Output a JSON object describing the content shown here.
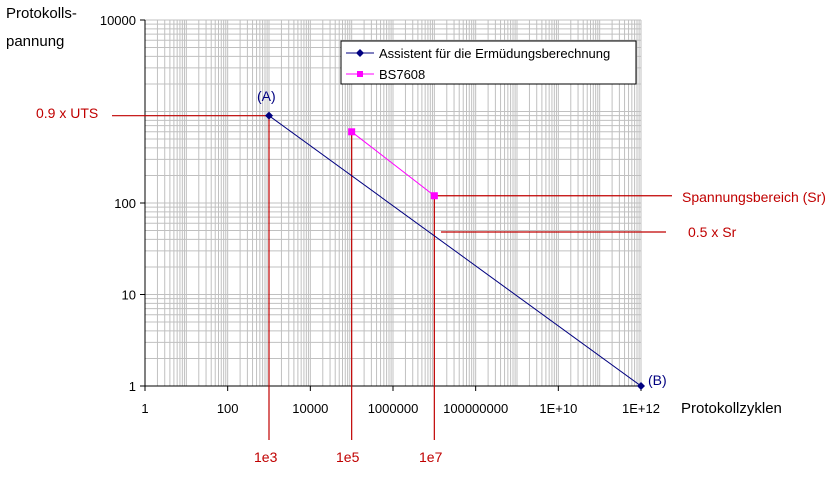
{
  "chart_data": {
    "type": "line",
    "xscale": "log",
    "yscale": "log",
    "xlim": [
      1,
      1000000000000.0
    ],
    "ylim": [
      1,
      10000
    ],
    "xlabel": "Protokollzyklen",
    "ylabel": "Protokolls-\npannung",
    "ylabel_lines": [
      "Protokolls-",
      "pannung"
    ],
    "grid": true,
    "xticks": [
      {
        "v": 1,
        "label": "1"
      },
      {
        "v": 100,
        "label": "100"
      },
      {
        "v": 10000,
        "label": "10000"
      },
      {
        "v": 1000000,
        "label": "1000000"
      },
      {
        "v": 100000000,
        "label": "100000000"
      },
      {
        "v": 10000000000.0,
        "label": "1E+10"
      },
      {
        "v": 1000000000000.0,
        "label": "1E+12"
      }
    ],
    "yticks": [
      {
        "v": 1,
        "label": "1"
      },
      {
        "v": 10,
        "label": "10"
      },
      {
        "v": 100,
        "label": "100"
      },
      {
        "v": 10000,
        "label": "10000"
      }
    ],
    "legend_position": "top-right",
    "series": [
      {
        "name": "Assistent für die Ermüdungsberechnung",
        "color": "#000080",
        "marker": "diamond",
        "x": [
          1000,
          1000000000000.0
        ],
        "y": [
          900,
          1
        ]
      },
      {
        "name": "BS7608",
        "color": "#ff00ff",
        "marker": "square",
        "x": [
          100000,
          10000000
        ],
        "y": [
          600,
          120
        ]
      }
    ],
    "annotations": {
      "point_a": "(A)",
      "point_b": "(B)",
      "uts": "0.9 x UTS",
      "sr": "Spannungsbereich (Sr)",
      "half_sr": "0.5 x Sr",
      "x1": "1e3",
      "x2": "1e5",
      "x3": "1e7"
    },
    "annotation_color": "#c00000"
  }
}
